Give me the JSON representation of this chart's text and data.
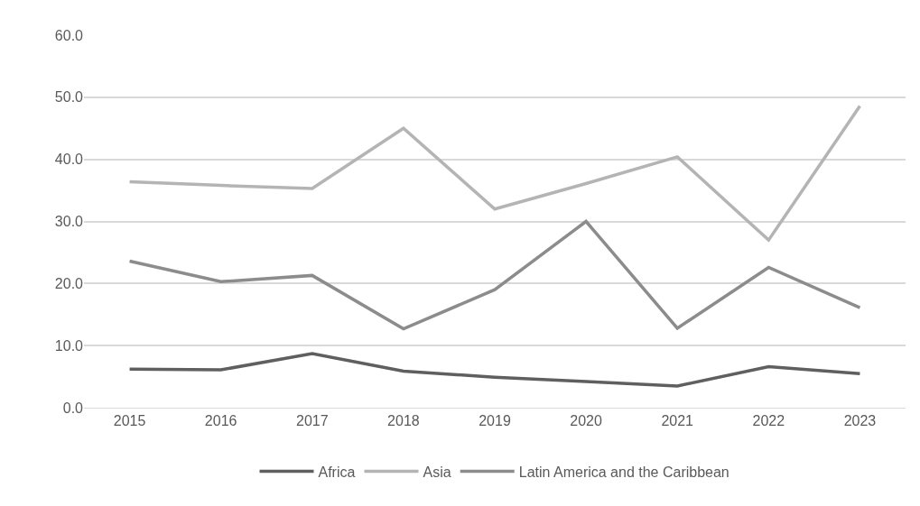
{
  "chart_data": {
    "type": "line",
    "categories": [
      "2015",
      "2016",
      "2017",
      "2018",
      "2019",
      "2020",
      "2021",
      "2022",
      "2023"
    ],
    "series": [
      {
        "name": "Africa",
        "color": "#5f5f5f",
        "values": [
          6.2,
          6.1,
          8.7,
          5.9,
          4.9,
          4.2,
          3.5,
          6.6,
          5.5
        ]
      },
      {
        "name": "Asia",
        "color": "#b4b4b4",
        "values": [
          36.4,
          35.8,
          35.3,
          45.0,
          32.0,
          36.1,
          40.4,
          27.0,
          48.6
        ]
      },
      {
        "name": "Latin America and the Caribbean",
        "color": "#8c8c8c",
        "values": [
          23.6,
          20.3,
          21.3,
          12.7,
          19.0,
          30.0,
          12.8,
          22.6,
          16.1
        ]
      }
    ],
    "ylim": [
      0,
      60
    ],
    "yticks": [
      {
        "value": 0,
        "label": "0.0"
      },
      {
        "value": 10,
        "label": "10.0"
      },
      {
        "value": 20,
        "label": "20.0"
      },
      {
        "value": 30,
        "label": "30.0"
      },
      {
        "value": 40,
        "label": "40.0"
      },
      {
        "value": 50,
        "label": "50.0"
      },
      {
        "value": 60,
        "label": "60.0"
      }
    ],
    "grid": "y",
    "legend": "bottom",
    "marker": "none",
    "line_style": "solid"
  }
}
